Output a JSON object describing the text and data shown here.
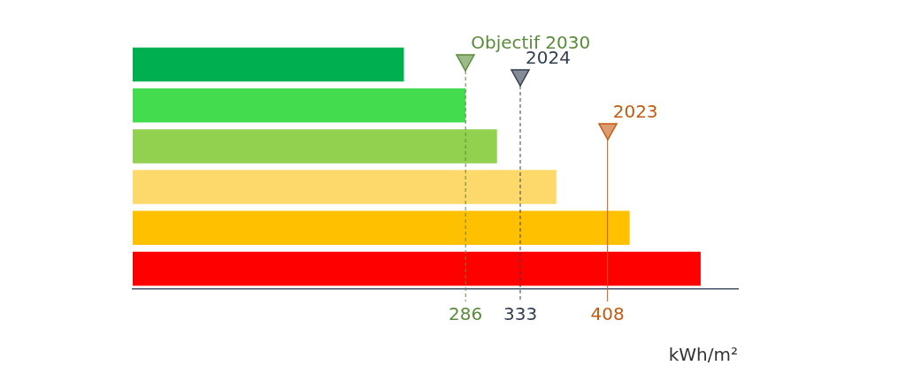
{
  "chart_data": {
    "type": "bar",
    "orientation": "horizontal",
    "xlabel": "kWh/m²",
    "categories": [
      null,
      null,
      null,
      null,
      null,
      null
    ],
    "values": [
      233,
      286,
      313,
      364,
      427,
      488
    ],
    "colors": [
      "#00b050",
      "#43dc4e",
      "#92d050",
      "#fdd86a",
      "#ffc000",
      "#ff0000"
    ],
    "xlim": [
      0,
      520
    ],
    "xticks": [
      286,
      333,
      408
    ],
    "tick_labels": "x",
    "grid": false,
    "legend": false,
    "annotations": [
      "Objectif 2030",
      "2024",
      "2023"
    ],
    "ref_lines": [
      {
        "axis": "x",
        "value": 286,
        "color": "#5b8c3a",
        "line_style": "dashed"
      },
      {
        "axis": "x",
        "value": 333,
        "color": "#333f50",
        "line_style": "dashed"
      },
      {
        "axis": "x",
        "value": 408,
        "color": "#c55a11",
        "line_style": "solid"
      }
    ]
  }
}
